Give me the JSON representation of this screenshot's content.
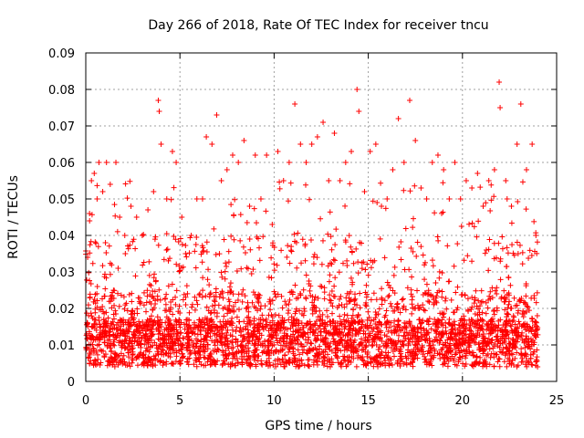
{
  "chart_data": {
    "type": "scatter",
    "title": "Day 266 of 2018, Rate Of TEC Index for receiver tncu",
    "xlabel": "GPS time / hours",
    "ylabel": "ROTI / TECUs",
    "xlim": [
      0,
      25
    ],
    "ylim": [
      0,
      0.09
    ],
    "x_ticks": [
      0,
      5,
      10,
      15,
      20,
      25
    ],
    "y_ticks": [
      0,
      0.01,
      0.02,
      0.03,
      0.04,
      0.05,
      0.06,
      0.07,
      0.08,
      0.09
    ],
    "x_tick_labels": [
      "0",
      "5",
      "10",
      "15",
      "20",
      "25"
    ],
    "y_tick_labels": [
      "0",
      "0.01",
      "0.02",
      "0.03",
      "0.04",
      "0.05",
      "0.06",
      "0.07",
      "0.08",
      "0.09"
    ],
    "grid": true,
    "marker": "+",
    "marker_color": "#ff0000",
    "data_x_range": [
      0,
      24
    ],
    "series": [
      {
        "name": "ROTI",
        "points": [
          [
            0.05,
            0.013
          ],
          [
            0.1,
            0.034
          ],
          [
            0.2,
            0.046
          ],
          [
            0.3,
            0.055
          ],
          [
            0.45,
            0.057
          ],
          [
            0.6,
            0.05
          ],
          [
            0.7,
            0.06
          ],
          [
            0.9,
            0.052
          ],
          [
            1.1,
            0.06
          ],
          [
            1.3,
            0.054
          ],
          [
            1.6,
            0.06
          ],
          [
            1.8,
            0.045
          ],
          [
            2.1,
            0.035
          ],
          [
            2.4,
            0.048
          ],
          [
            2.7,
            0.045
          ],
          [
            3.0,
            0.04
          ],
          [
            3.3,
            0.047
          ],
          [
            3.6,
            0.052
          ],
          [
            3.85,
            0.077
          ],
          [
            3.9,
            0.074
          ],
          [
            4.0,
            0.065
          ],
          [
            4.3,
            0.05
          ],
          [
            4.6,
            0.063
          ],
          [
            4.8,
            0.06
          ],
          [
            5.1,
            0.045
          ],
          [
            5.3,
            0.035
          ],
          [
            5.6,
            0.04
          ],
          [
            5.9,
            0.05
          ],
          [
            6.2,
            0.05
          ],
          [
            6.4,
            0.067
          ],
          [
            6.7,
            0.065
          ],
          [
            6.95,
            0.073
          ],
          [
            7.2,
            0.055
          ],
          [
            7.5,
            0.058
          ],
          [
            7.8,
            0.062
          ],
          [
            8.1,
            0.06
          ],
          [
            8.4,
            0.066
          ],
          [
            8.7,
            0.048
          ],
          [
            9.0,
            0.062
          ],
          [
            9.3,
            0.05
          ],
          [
            9.6,
            0.062
          ],
          [
            9.9,
            0.043
          ],
          [
            10.2,
            0.063
          ],
          [
            10.5,
            0.055
          ],
          [
            10.8,
            0.06
          ],
          [
            11.1,
            0.076
          ],
          [
            11.4,
            0.065
          ],
          [
            11.7,
            0.06
          ],
          [
            12.0,
            0.065
          ],
          [
            12.3,
            0.067
          ],
          [
            12.6,
            0.071
          ],
          [
            12.9,
            0.055
          ],
          [
            13.2,
            0.068
          ],
          [
            13.5,
            0.055
          ],
          [
            13.8,
            0.06
          ],
          [
            14.1,
            0.063
          ],
          [
            14.4,
            0.08
          ],
          [
            14.5,
            0.074
          ],
          [
            14.8,
            0.052
          ],
          [
            15.1,
            0.063
          ],
          [
            15.4,
            0.065
          ],
          [
            15.7,
            0.048
          ],
          [
            16.0,
            0.05
          ],
          [
            16.3,
            0.058
          ],
          [
            16.6,
            0.072
          ],
          [
            16.9,
            0.06
          ],
          [
            17.2,
            0.077
          ],
          [
            17.5,
            0.066
          ],
          [
            17.8,
            0.053
          ],
          [
            18.1,
            0.05
          ],
          [
            18.4,
            0.06
          ],
          [
            18.7,
            0.062
          ],
          [
            19.0,
            0.058
          ],
          [
            19.3,
            0.05
          ],
          [
            19.6,
            0.06
          ],
          [
            19.9,
            0.05
          ],
          [
            20.2,
            0.055
          ],
          [
            20.5,
            0.053
          ],
          [
            20.8,
            0.057
          ],
          [
            21.1,
            0.048
          ],
          [
            21.4,
            0.055
          ],
          [
            21.7,
            0.058
          ],
          [
            21.95,
            0.082
          ],
          [
            22.0,
            0.075
          ],
          [
            22.3,
            0.055
          ],
          [
            22.6,
            0.048
          ],
          [
            22.9,
            0.065
          ],
          [
            23.1,
            0.076
          ],
          [
            23.4,
            0.058
          ],
          [
            23.7,
            0.065
          ],
          [
            23.9,
            0.04
          ]
        ]
      }
    ]
  }
}
